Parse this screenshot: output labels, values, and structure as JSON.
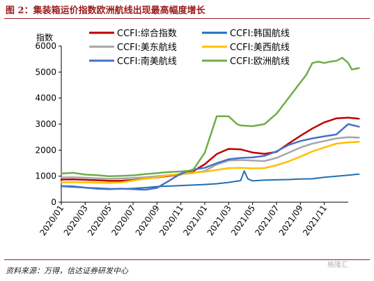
{
  "title": "图 2：集装箱运价指数欧洲航线出现最高幅度增长",
  "source": "资料来源：万得，信达证券研发中心",
  "watermark": "格隆汇",
  "chart_data": {
    "type": "line",
    "title": "",
    "ylabel": "指数",
    "xlabel": "",
    "ylim": [
      0,
      6000
    ],
    "yticks": [
      0,
      1000,
      2000,
      3000,
      4000,
      5000,
      6000
    ],
    "xticks": [
      "2020/01",
      "2020/03",
      "2020/05",
      "2020/07",
      "2020/09",
      "2020/11",
      "2021/01",
      "2021/03",
      "2021/05",
      "2021/07",
      "2021/09",
      "2021/11"
    ],
    "xrange": [
      0,
      24
    ],
    "legend_position": "top",
    "series": [
      {
        "name": "CCFI:综合指数",
        "color": "#c00000",
        "width": 2.5,
        "points": [
          [
            0,
            870
          ],
          [
            1,
            875
          ],
          [
            2,
            860
          ],
          [
            3,
            845
          ],
          [
            4,
            820
          ],
          [
            5,
            825
          ],
          [
            6,
            850
          ],
          [
            7,
            905
          ],
          [
            8,
            950
          ],
          [
            9,
            1010
          ],
          [
            10,
            1070
          ],
          [
            11,
            1180
          ],
          [
            12,
            1460
          ],
          [
            13,
            1850
          ],
          [
            14,
            2050
          ],
          [
            15,
            2030
          ],
          [
            16,
            1910
          ],
          [
            17,
            1860
          ],
          [
            18,
            1930
          ],
          [
            19,
            2250
          ],
          [
            20,
            2550
          ],
          [
            21,
            2830
          ],
          [
            22,
            3070
          ],
          [
            23,
            3220
          ],
          [
            24,
            3250
          ],
          [
            24.9,
            3210
          ]
        ]
      },
      {
        "name": "CCFI:韩国航线",
        "color": "#1f6fb5",
        "width": 2,
        "points": [
          [
            0,
            610
          ],
          [
            1,
            580
          ],
          [
            2,
            560
          ],
          [
            3,
            540
          ],
          [
            4,
            520
          ],
          [
            5,
            510
          ],
          [
            6,
            530
          ],
          [
            7,
            560
          ],
          [
            8,
            600
          ],
          [
            9,
            620
          ],
          [
            10,
            640
          ],
          [
            11,
            660
          ],
          [
            12,
            680
          ],
          [
            13,
            710
          ],
          [
            14,
            760
          ],
          [
            15,
            830
          ],
          [
            15.3,
            1200
          ],
          [
            15.6,
            900
          ],
          [
            16,
            820
          ],
          [
            17,
            850
          ],
          [
            18,
            860
          ],
          [
            19,
            870
          ],
          [
            20,
            890
          ],
          [
            21,
            900
          ],
          [
            22,
            960
          ],
          [
            23,
            1000
          ],
          [
            24,
            1040
          ],
          [
            24.9,
            1080
          ]
        ]
      },
      {
        "name": "CCFI:美东航线",
        "color": "#a6a6a6",
        "width": 2.5,
        "points": [
          [
            0,
            950
          ],
          [
            1,
            960
          ],
          [
            2,
            940
          ],
          [
            3,
            920
          ],
          [
            4,
            900
          ],
          [
            5,
            910
          ],
          [
            6,
            930
          ],
          [
            7,
            960
          ],
          [
            8,
            1000
          ],
          [
            9,
            1040
          ],
          [
            10,
            1080
          ],
          [
            11,
            1120
          ],
          [
            12,
            1200
          ],
          [
            13,
            1450
          ],
          [
            14,
            1600
          ],
          [
            15,
            1620
          ],
          [
            16,
            1600
          ],
          [
            17,
            1580
          ],
          [
            18,
            1700
          ],
          [
            19,
            1900
          ],
          [
            20,
            2100
          ],
          [
            21,
            2250
          ],
          [
            22,
            2350
          ],
          [
            23,
            2450
          ],
          [
            24,
            2500
          ],
          [
            24.9,
            2480
          ]
        ]
      },
      {
        "name": "CCFI:美西航线",
        "color": "#ffc000",
        "width": 2.5,
        "points": [
          [
            0,
            760
          ],
          [
            1,
            770
          ],
          [
            2,
            760
          ],
          [
            3,
            750
          ],
          [
            4,
            740
          ],
          [
            5,
            760
          ],
          [
            6,
            830
          ],
          [
            7,
            900
          ],
          [
            8,
            960
          ],
          [
            9,
            1030
          ],
          [
            10,
            1090
          ],
          [
            11,
            1130
          ],
          [
            12,
            1170
          ],
          [
            13,
            1240
          ],
          [
            14,
            1310
          ],
          [
            15,
            1320
          ],
          [
            16,
            1300
          ],
          [
            17,
            1310
          ],
          [
            18,
            1420
          ],
          [
            19,
            1570
          ],
          [
            20,
            1750
          ],
          [
            21,
            1950
          ],
          [
            22,
            2100
          ],
          [
            23,
            2250
          ],
          [
            24,
            2300
          ],
          [
            24.9,
            2320
          ]
        ]
      },
      {
        "name": "CCFI:南美航线",
        "color": "#4472c4",
        "width": 2.5,
        "points": [
          [
            0,
            620
          ],
          [
            1,
            610
          ],
          [
            2,
            560
          ],
          [
            3,
            520
          ],
          [
            4,
            500
          ],
          [
            5,
            520
          ],
          [
            6,
            500
          ],
          [
            7,
            480
          ],
          [
            8,
            550
          ],
          [
            9,
            820
          ],
          [
            10,
            1100
          ],
          [
            11,
            1250
          ],
          [
            12,
            1320
          ],
          [
            13,
            1500
          ],
          [
            14,
            1650
          ],
          [
            15,
            1700
          ],
          [
            16,
            1720
          ],
          [
            17,
            1780
          ],
          [
            18,
            1950
          ],
          [
            19,
            2200
          ],
          [
            20,
            2350
          ],
          [
            21,
            2450
          ],
          [
            22,
            2530
          ],
          [
            23,
            2600
          ],
          [
            24,
            3000
          ],
          [
            24.9,
            2900
          ]
        ]
      },
      {
        "name": "CCFI:欧洲航线",
        "color": "#70ad47",
        "width": 2.5,
        "points": [
          [
            0,
            1100
          ],
          [
            1,
            1130
          ],
          [
            2,
            1060
          ],
          [
            3,
            1040
          ],
          [
            4,
            1000
          ],
          [
            5,
            1010
          ],
          [
            6,
            1030
          ],
          [
            7,
            1080
          ],
          [
            8,
            1120
          ],
          [
            9,
            1160
          ],
          [
            10,
            1180
          ],
          [
            11,
            1220
          ],
          [
            12,
            1900
          ],
          [
            13,
            3300
          ],
          [
            14,
            3300
          ],
          [
            14.7,
            3000
          ],
          [
            15,
            2950
          ],
          [
            16,
            2920
          ],
          [
            17,
            3000
          ],
          [
            18,
            3400
          ],
          [
            19,
            4000
          ],
          [
            20,
            4600
          ],
          [
            20.5,
            4900
          ],
          [
            21,
            5350
          ],
          [
            21.5,
            5400
          ],
          [
            22,
            5350
          ],
          [
            22.5,
            5400
          ],
          [
            23,
            5430
          ],
          [
            23.5,
            5550
          ],
          [
            24,
            5350
          ],
          [
            24.3,
            5100
          ],
          [
            24.9,
            5150
          ]
        ]
      }
    ]
  }
}
